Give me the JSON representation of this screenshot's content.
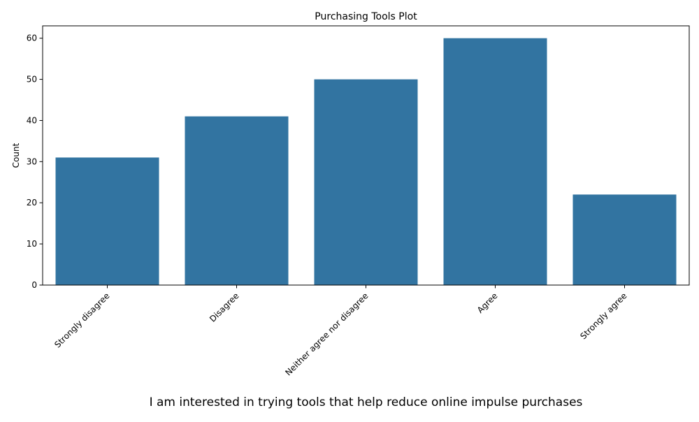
{
  "chart_data": {
    "type": "bar",
    "title": "Purchasing Tools Plot",
    "xlabel": "I am interested in trying tools that help reduce online impulse purchases",
    "ylabel": "Count",
    "categories": [
      "Strongly disagree",
      "Disagree",
      "Neither agree nor disagree",
      "Agree",
      "Strongly agree"
    ],
    "values": [
      31,
      41,
      50,
      60,
      22
    ],
    "ylim": [
      0,
      63
    ],
    "yticks": [
      0,
      10,
      20,
      30,
      40,
      50,
      60
    ],
    "bar_color": "#3274a1",
    "grid": false,
    "legend": "none"
  }
}
